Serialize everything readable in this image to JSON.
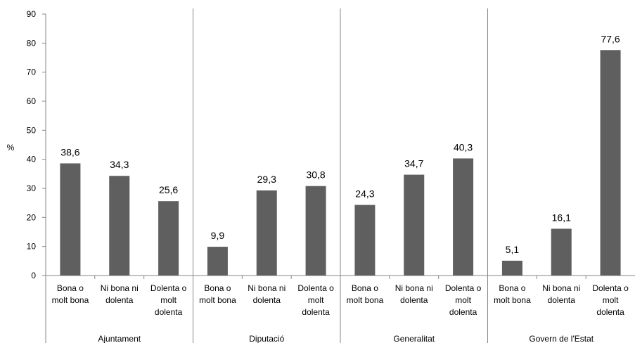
{
  "chart_data": {
    "type": "bar",
    "ylabel": "%",
    "ylim": [
      0,
      90
    ],
    "yticks": [
      0,
      10,
      20,
      30,
      40,
      50,
      60,
      70,
      80,
      90
    ],
    "bar_color": "#5f5f5f",
    "grid": false,
    "groups": [
      {
        "name": "Ajuntament",
        "categories": [
          [
            "Bona o",
            "molt bona"
          ],
          [
            "Ni bona ni",
            "dolenta"
          ],
          [
            "Dolenta o",
            "molt",
            "dolenta"
          ]
        ],
        "values": [
          38.6,
          34.3,
          25.6
        ],
        "labels": [
          "38,6",
          "34,3",
          "25,6"
        ]
      },
      {
        "name": "Diputació",
        "categories": [
          [
            "Bona o",
            "molt bona"
          ],
          [
            "Ni bona ni",
            "dolenta"
          ],
          [
            "Dolenta o",
            "molt",
            "dolenta"
          ]
        ],
        "values": [
          9.9,
          29.3,
          30.8
        ],
        "labels": [
          "9,9",
          "29,3",
          "30,8"
        ]
      },
      {
        "name": "Generalitat",
        "categories": [
          [
            "Bona o",
            "molt bona"
          ],
          [
            "Ni bona ni",
            "dolenta"
          ],
          [
            "Dolenta o",
            "molt",
            "dolenta"
          ]
        ],
        "values": [
          24.3,
          34.7,
          40.3
        ],
        "labels": [
          "24,3",
          "34,7",
          "40,3"
        ]
      },
      {
        "name": "Govern de l'Estat",
        "categories": [
          [
            "Bona o",
            "molt bona"
          ],
          [
            "Ni bona ni",
            "dolenta"
          ],
          [
            "Dolenta o",
            "molt",
            "dolenta"
          ]
        ],
        "values": [
          5.1,
          16.1,
          77.6
        ],
        "labels": [
          "5,1",
          "16,1",
          "77,6"
        ]
      }
    ]
  }
}
